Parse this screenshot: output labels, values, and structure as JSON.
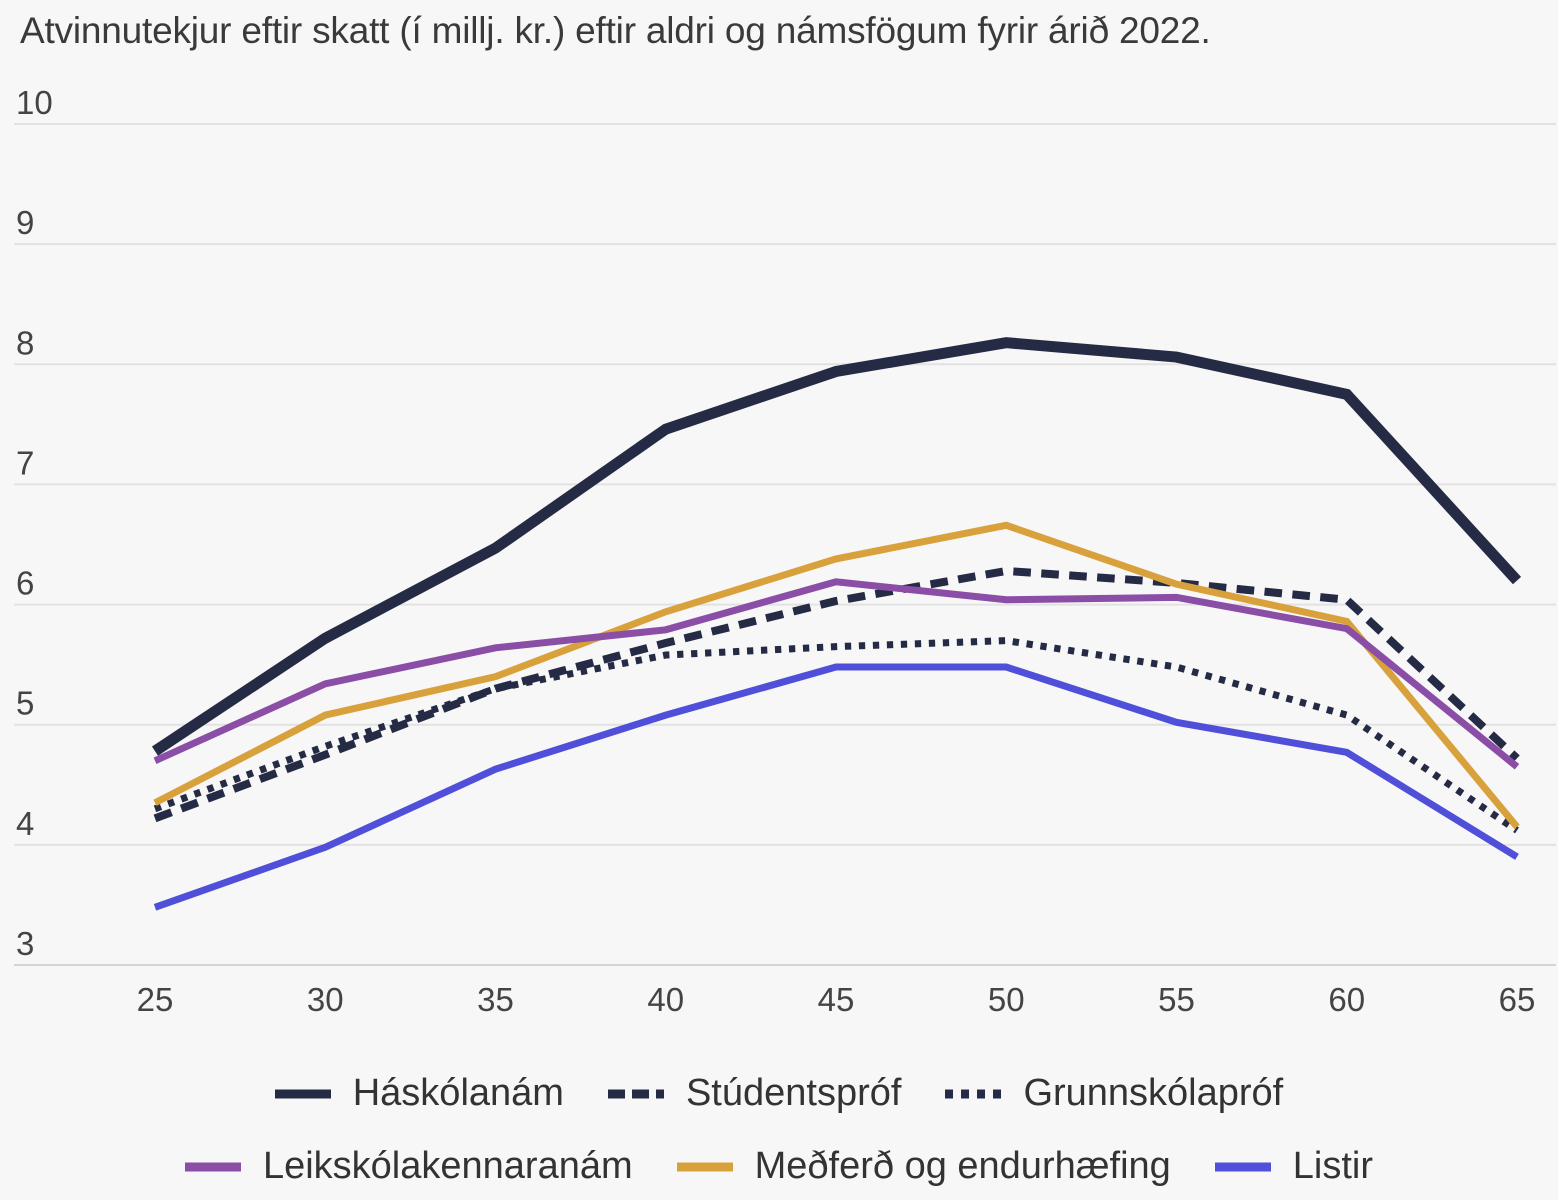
{
  "chart_data": {
    "type": "line",
    "title": "Atvinnutekjur eftir skatt (í millj. kr.) eftir aldri og námsfögum fyrir árið 2022.",
    "x": [
      25,
      30,
      35,
      40,
      45,
      50,
      55,
      60,
      65
    ],
    "ylim": [
      3,
      10
    ],
    "yticks": [
      3,
      4,
      5,
      6,
      7,
      8,
      9,
      10
    ],
    "grid": true,
    "legend_position": "bottom",
    "series": [
      {
        "name": "Háskólanám",
        "color": "#262b45",
        "style": "solid",
        "width": 11,
        "values": [
          4.78,
          5.72,
          6.47,
          7.46,
          7.94,
          8.18,
          8.06,
          7.75,
          6.2
        ]
      },
      {
        "name": "Stúdentspróf",
        "color": "#262b45",
        "style": "dashed",
        "width": 8,
        "values": [
          4.22,
          4.75,
          5.3,
          5.68,
          6.03,
          6.28,
          6.18,
          6.04,
          4.72
        ]
      },
      {
        "name": "Grunnskólapróf",
        "color": "#262b45",
        "style": "dotted",
        "width": 7,
        "values": [
          4.3,
          4.82,
          5.3,
          5.58,
          5.65,
          5.7,
          5.48,
          5.08,
          4.12
        ]
      },
      {
        "name": "Leikskólakennaranám",
        "color": "#8a4ea6",
        "style": "solid",
        "width": 7,
        "values": [
          4.7,
          5.34,
          5.64,
          5.79,
          6.19,
          6.04,
          6.06,
          5.8,
          4.65
        ]
      },
      {
        "name": "Meðferð og endurhæfing",
        "color": "#d9a13b",
        "style": "solid",
        "width": 7,
        "values": [
          4.35,
          5.08,
          5.4,
          5.94,
          6.38,
          6.66,
          6.17,
          5.86,
          4.15
        ]
      },
      {
        "name": "Listir",
        "color": "#4f4fd9",
        "style": "solid",
        "width": 7,
        "values": [
          3.48,
          3.98,
          4.63,
          5.08,
          5.48,
          5.48,
          5.02,
          4.77,
          3.9
        ]
      }
    ]
  },
  "legend": {
    "rows": [
      [
        0,
        1,
        2
      ],
      [
        3,
        4,
        5
      ]
    ]
  }
}
